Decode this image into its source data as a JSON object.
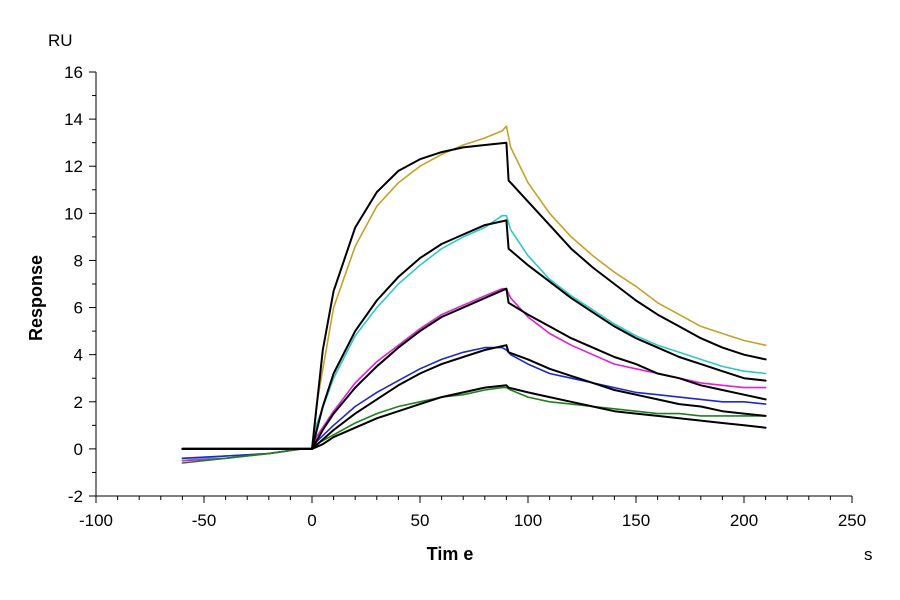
{
  "chart_data": {
    "type": "line",
    "xlabel": "Tim e",
    "ylabel": "Response",
    "x_unit": "s",
    "y_unit": "RU",
    "xlim": [
      -100,
      250
    ],
    "ylim": [
      -2,
      16
    ],
    "x_ticks": [
      -100,
      -50,
      0,
      50,
      100,
      150,
      200,
      250
    ],
    "y_ticks": [
      -2,
      0,
      2,
      4,
      6,
      8,
      10,
      12,
      14,
      16
    ],
    "grid": false,
    "legend": "none",
    "kinetics": {
      "association_end_s": 90,
      "baseline_start_s": -60,
      "end_s": 210
    },
    "series": [
      {
        "kind": "measured",
        "color": "#C8A028",
        "x": [
          -60,
          -40,
          -20,
          -5,
          0,
          2,
          10,
          20,
          30,
          40,
          50,
          60,
          70,
          80,
          88,
          90,
          92,
          100,
          110,
          120,
          130,
          140,
          150,
          160,
          170,
          180,
          190,
          200,
          210
        ],
        "y": [
          -0.4,
          -0.3,
          -0.2,
          0.0,
          0.0,
          1.8,
          6.0,
          8.6,
          10.3,
          11.3,
          12.0,
          12.5,
          12.9,
          13.2,
          13.5,
          13.7,
          12.8,
          11.3,
          10.0,
          9.0,
          8.2,
          7.5,
          6.9,
          6.2,
          5.7,
          5.2,
          4.9,
          4.6,
          4.4
        ]
      },
      {
        "kind": "measured",
        "color": "#2FC8C8",
        "x": [
          -60,
          -40,
          -20,
          -5,
          0,
          2,
          10,
          20,
          30,
          40,
          50,
          60,
          70,
          80,
          88,
          90,
          92,
          100,
          110,
          120,
          130,
          140,
          150,
          160,
          170,
          180,
          190,
          200,
          210
        ],
        "y": [
          -0.5,
          -0.3,
          -0.2,
          0.0,
          0.0,
          1.0,
          3.0,
          4.8,
          6.0,
          7.0,
          7.8,
          8.5,
          9.0,
          9.4,
          9.9,
          9.9,
          9.3,
          8.2,
          7.2,
          6.5,
          5.9,
          5.3,
          4.8,
          4.4,
          4.1,
          3.8,
          3.5,
          3.3,
          3.2
        ]
      },
      {
        "kind": "measured",
        "color": "#E020D8",
        "x": [
          -60,
          -40,
          -20,
          -5,
          0,
          2,
          10,
          20,
          30,
          40,
          50,
          60,
          70,
          80,
          88,
          90,
          92,
          100,
          110,
          120,
          130,
          140,
          150,
          160,
          170,
          180,
          190,
          200,
          210
        ],
        "y": [
          -0.5,
          -0.4,
          -0.2,
          0.0,
          0.0,
          0.5,
          1.6,
          2.8,
          3.7,
          4.4,
          5.1,
          5.7,
          6.1,
          6.5,
          6.8,
          6.8,
          6.4,
          5.6,
          4.9,
          4.4,
          4.0,
          3.6,
          3.4,
          3.2,
          3.0,
          2.8,
          2.7,
          2.6,
          2.6
        ]
      },
      {
        "kind": "measured",
        "color": "#1E28C8",
        "x": [
          -60,
          -40,
          -20,
          -5,
          0,
          2,
          10,
          20,
          30,
          40,
          50,
          60,
          70,
          80,
          88,
          90,
          92,
          100,
          110,
          120,
          130,
          140,
          150,
          160,
          170,
          180,
          190,
          200,
          210
        ],
        "y": [
          -0.4,
          -0.3,
          -0.2,
          0.0,
          0.0,
          0.3,
          1.0,
          1.8,
          2.4,
          2.9,
          3.4,
          3.8,
          4.1,
          4.3,
          4.3,
          4.2,
          4.0,
          3.6,
          3.2,
          3.0,
          2.8,
          2.6,
          2.4,
          2.3,
          2.2,
          2.1,
          2.0,
          2.0,
          1.9
        ]
      },
      {
        "kind": "measured",
        "color": "#208020",
        "x": [
          -60,
          -40,
          -20,
          -5,
          0,
          2,
          10,
          20,
          30,
          40,
          50,
          60,
          70,
          80,
          88,
          90,
          92,
          100,
          110,
          120,
          130,
          140,
          150,
          160,
          170,
          180,
          190,
          200,
          210
        ],
        "y": [
          -0.6,
          -0.4,
          -0.2,
          0.0,
          0.0,
          0.2,
          0.6,
          1.1,
          1.5,
          1.8,
          2.0,
          2.2,
          2.3,
          2.5,
          2.6,
          2.6,
          2.5,
          2.2,
          2.0,
          1.9,
          1.8,
          1.7,
          1.6,
          1.5,
          1.5,
          1.4,
          1.4,
          1.4,
          1.4
        ]
      },
      {
        "kind": "fit",
        "color": "#000000",
        "x": [
          -60,
          0,
          5,
          10,
          20,
          30,
          40,
          50,
          60,
          70,
          80,
          90,
          91,
          100,
          110,
          120,
          130,
          140,
          150,
          160,
          170,
          180,
          190,
          200,
          210
        ],
        "y": [
          0.0,
          0.0,
          4.2,
          6.7,
          9.4,
          10.9,
          11.8,
          12.3,
          12.6,
          12.8,
          12.9,
          13.0,
          11.4,
          10.5,
          9.5,
          8.5,
          7.7,
          7.0,
          6.3,
          5.7,
          5.2,
          4.7,
          4.3,
          4.0,
          3.8
        ]
      },
      {
        "kind": "fit",
        "color": "#000000",
        "x": [
          -60,
          0,
          5,
          10,
          20,
          30,
          40,
          50,
          60,
          70,
          80,
          90,
          91,
          100,
          110,
          120,
          130,
          140,
          150,
          160,
          170,
          180,
          190,
          200,
          210
        ],
        "y": [
          0.0,
          0.0,
          1.8,
          3.2,
          5.0,
          6.3,
          7.3,
          8.1,
          8.7,
          9.1,
          9.5,
          9.7,
          8.5,
          7.8,
          7.1,
          6.4,
          5.8,
          5.2,
          4.7,
          4.3,
          3.9,
          3.6,
          3.3,
          3.0,
          2.9
        ]
      },
      {
        "kind": "fit",
        "color": "#000000",
        "x": [
          -60,
          0,
          5,
          10,
          20,
          30,
          40,
          50,
          60,
          70,
          80,
          90,
          91,
          100,
          110,
          120,
          130,
          140,
          150,
          160,
          170,
          180,
          190,
          200,
          210
        ],
        "y": [
          0.0,
          0.0,
          0.8,
          1.5,
          2.6,
          3.5,
          4.3,
          5.0,
          5.6,
          6.0,
          6.4,
          6.8,
          6.2,
          5.7,
          5.2,
          4.7,
          4.3,
          3.9,
          3.6,
          3.2,
          3.0,
          2.7,
          2.5,
          2.3,
          2.1
        ]
      },
      {
        "kind": "fit",
        "color": "#000000",
        "x": [
          -60,
          0,
          5,
          10,
          20,
          30,
          40,
          50,
          60,
          70,
          80,
          90,
          91,
          100,
          110,
          120,
          130,
          140,
          150,
          160,
          170,
          180,
          190,
          200,
          210
        ],
        "y": [
          0.0,
          0.0,
          0.4,
          0.8,
          1.5,
          2.1,
          2.7,
          3.2,
          3.6,
          3.9,
          4.2,
          4.4,
          4.1,
          3.8,
          3.4,
          3.1,
          2.8,
          2.5,
          2.3,
          2.1,
          1.9,
          1.8,
          1.6,
          1.5,
          1.4
        ]
      },
      {
        "kind": "fit",
        "color": "#000000",
        "x": [
          -60,
          0,
          5,
          10,
          20,
          30,
          40,
          50,
          60,
          70,
          80,
          90,
          91,
          100,
          110,
          120,
          130,
          140,
          150,
          160,
          170,
          180,
          190,
          200,
          210
        ],
        "y": [
          0.0,
          0.0,
          0.2,
          0.5,
          0.9,
          1.3,
          1.6,
          1.9,
          2.2,
          2.4,
          2.6,
          2.7,
          2.6,
          2.4,
          2.2,
          2.0,
          1.8,
          1.6,
          1.5,
          1.4,
          1.3,
          1.2,
          1.1,
          1.0,
          0.9
        ]
      }
    ]
  }
}
